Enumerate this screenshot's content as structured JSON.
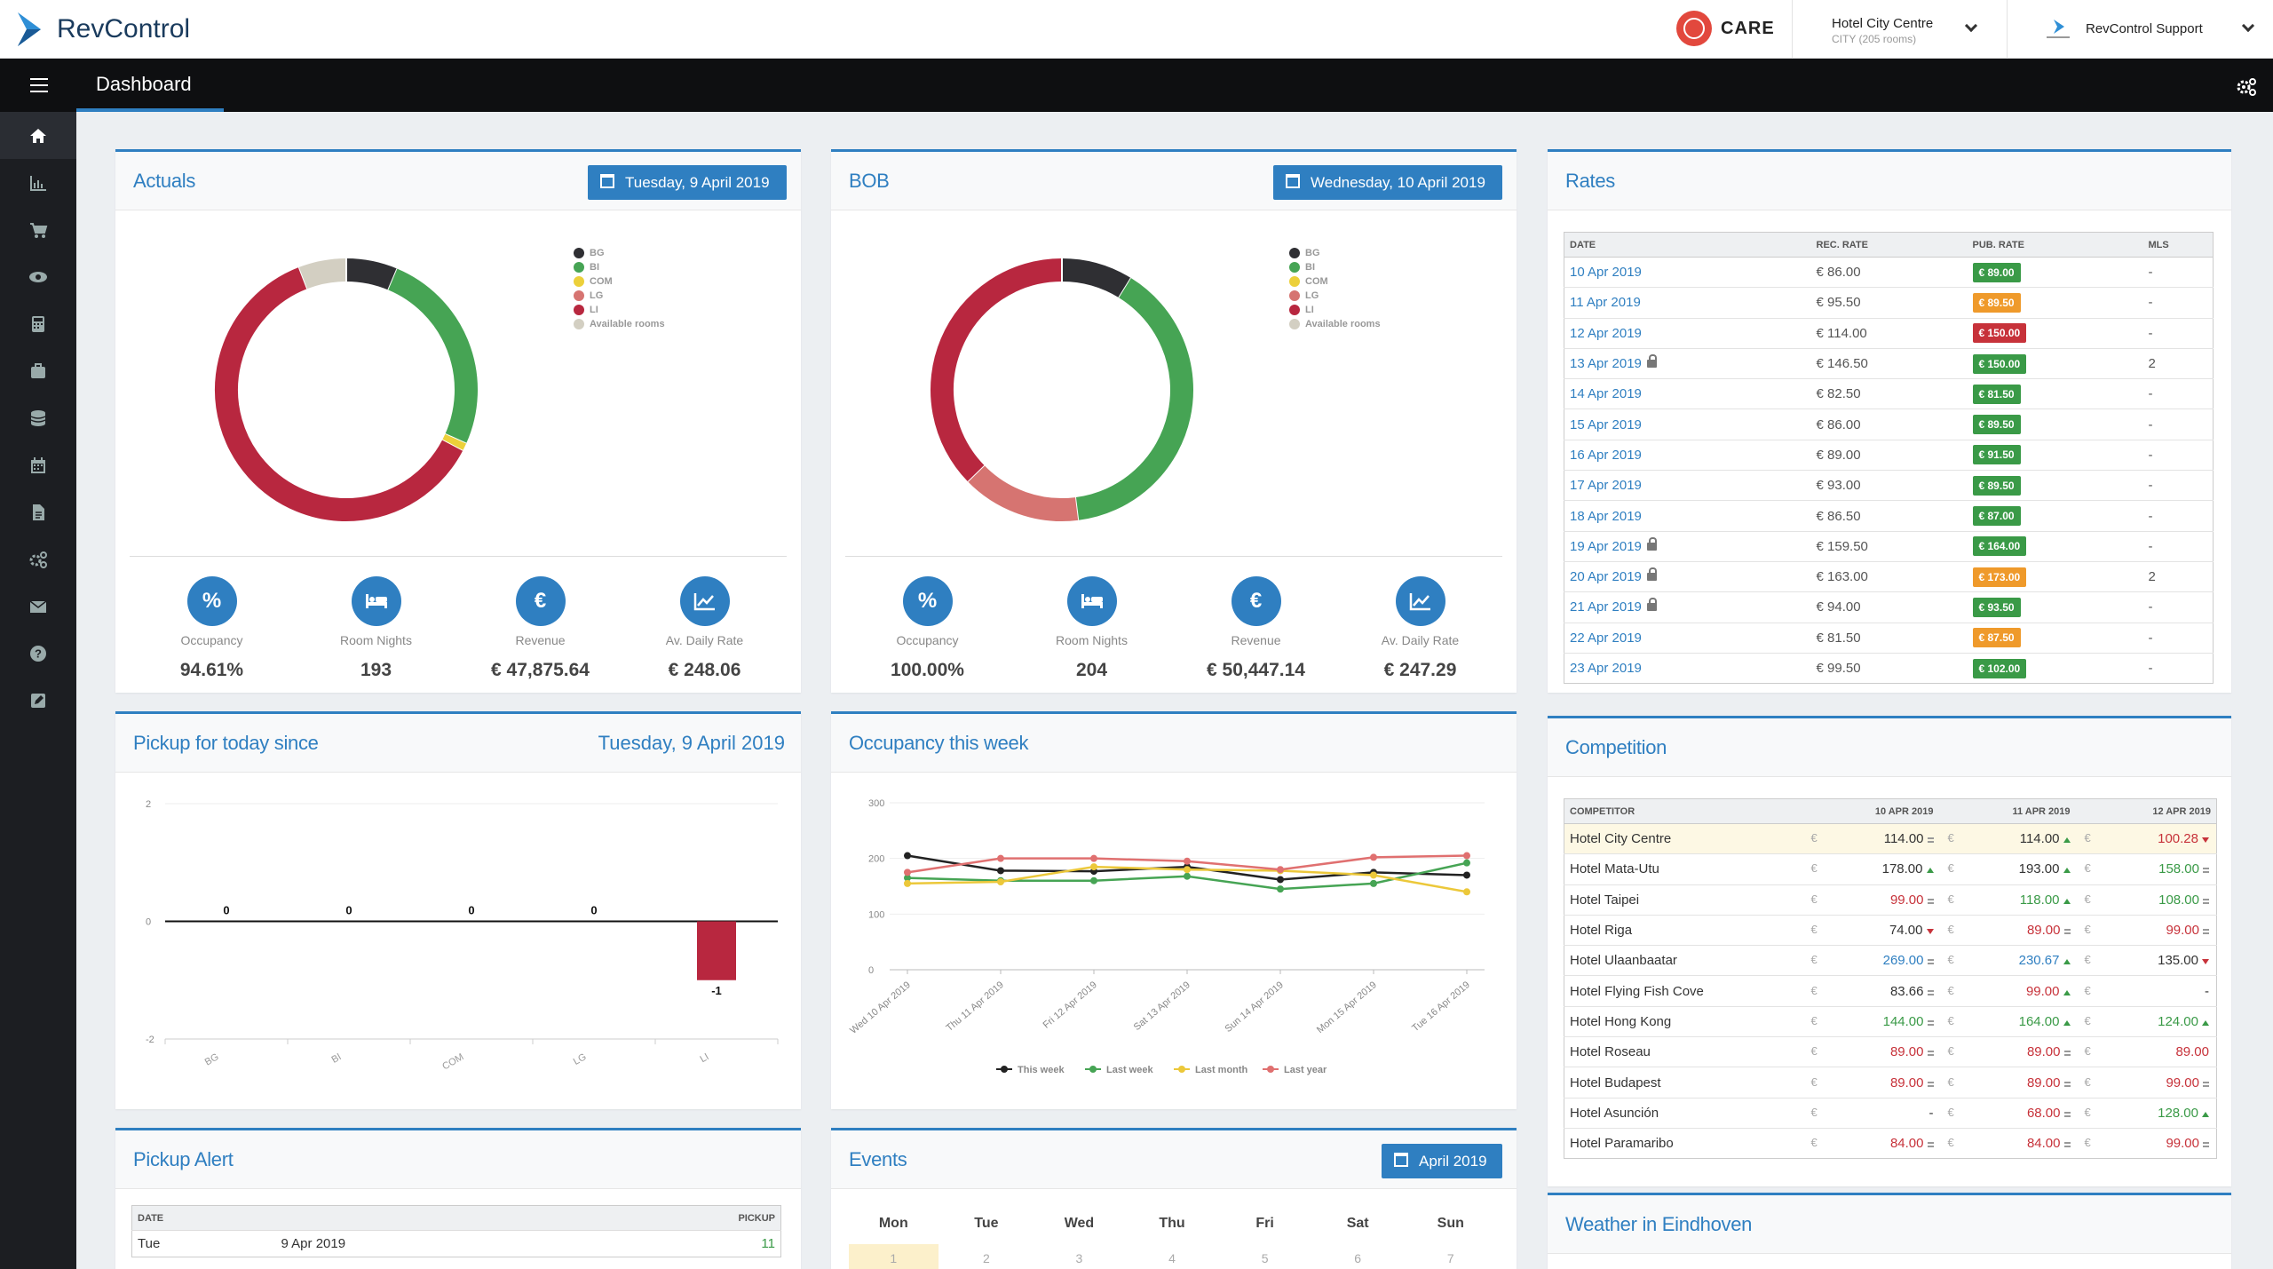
{
  "app": {
    "name": "RevControl",
    "care_label": "CARE"
  },
  "hotel_selector": {
    "name": "Hotel City Centre",
    "sub": "CITY (205 rooms)"
  },
  "user": {
    "name": "RevControl Support"
  },
  "nav": {
    "title": "Dashboard"
  },
  "sidebar": [
    "home-icon",
    "bar-chart-icon",
    "cart-icon",
    "eye-icon",
    "calculator-icon",
    "briefcase-icon",
    "database-icon",
    "calendar-icon",
    "document-icon",
    "cogs-icon",
    "envelope-icon",
    "question-icon",
    "edit-icon"
  ],
  "colors": {
    "BG": "#2f2f33",
    "BI": "#46a454",
    "COM": "#ecd03a",
    "LG": "#d67471",
    "LI": "#b8273f",
    "Available rooms": "#d3cfc2",
    "accent": "#2f7fc1"
  },
  "actuals": {
    "title": "Actuals",
    "date": "Tuesday, 9 April 2019",
    "legend": [
      "BG",
      "BI",
      "COM",
      "LG",
      "LI",
      "Available rooms"
    ],
    "donut": [
      {
        "segment": "BG",
        "value": 13
      },
      {
        "segment": "BI",
        "value": 52
      },
      {
        "segment": "COM",
        "value": 2
      },
      {
        "segment": "LG",
        "value": 0
      },
      {
        "segment": "LI",
        "value": 126
      },
      {
        "segment": "Available rooms",
        "value": 12
      }
    ],
    "kpis": [
      {
        "icon": "percent-icon",
        "symbol": "%",
        "label": "Occupancy",
        "value": "94.61%"
      },
      {
        "icon": "bed-icon",
        "symbol": "",
        "label": "Room Nights",
        "value": "193"
      },
      {
        "icon": "euro-icon",
        "symbol": "€",
        "label": "Revenue",
        "value": "€ 47,875.64"
      },
      {
        "icon": "trend-icon",
        "symbol": "",
        "label": "Av. Daily Rate",
        "value": "€ 248.06"
      }
    ]
  },
  "bob": {
    "title": "BOB",
    "date": "Wednesday, 10 April 2019",
    "legend": [
      "BG",
      "BI",
      "COM",
      "LG",
      "LI",
      "Available rooms"
    ],
    "donut": [
      {
        "segment": "BG",
        "value": 18
      },
      {
        "segment": "BI",
        "value": 80
      },
      {
        "segment": "COM",
        "value": 0
      },
      {
        "segment": "LG",
        "value": 30
      },
      {
        "segment": "LI",
        "value": 76
      },
      {
        "segment": "Available rooms",
        "value": 0
      }
    ],
    "kpis": [
      {
        "icon": "percent-icon",
        "symbol": "%",
        "label": "Occupancy",
        "value": "100.00%"
      },
      {
        "icon": "bed-icon",
        "symbol": "",
        "label": "Room Nights",
        "value": "204"
      },
      {
        "icon": "euro-icon",
        "symbol": "€",
        "label": "Revenue",
        "value": "€ 50,447.14"
      },
      {
        "icon": "trend-icon",
        "symbol": "",
        "label": "Av. Daily Rate",
        "value": "€ 247.29"
      }
    ]
  },
  "rates": {
    "title": "Rates",
    "headers": [
      "DATE",
      "REC. RATE",
      "PUB. RATE",
      "MLS"
    ],
    "rows": [
      {
        "date": "10 Apr 2019",
        "lock": false,
        "rec": "€ 86.00",
        "pub": "€ 89.00",
        "pub_color": "green",
        "mls": "-"
      },
      {
        "date": "11 Apr 2019",
        "lock": false,
        "rec": "€ 95.50",
        "pub": "€ 89.50",
        "pub_color": "orange",
        "mls": "-"
      },
      {
        "date": "12 Apr 2019",
        "lock": false,
        "rec": "€ 114.00",
        "pub": "€ 150.00",
        "pub_color": "red",
        "mls": "-"
      },
      {
        "date": "13 Apr 2019",
        "lock": true,
        "rec": "€ 146.50",
        "pub": "€ 150.00",
        "pub_color": "green",
        "mls": "2"
      },
      {
        "date": "14 Apr 2019",
        "lock": false,
        "rec": "€ 82.50",
        "pub": "€ 81.50",
        "pub_color": "green",
        "mls": "-"
      },
      {
        "date": "15 Apr 2019",
        "lock": false,
        "rec": "€ 86.00",
        "pub": "€ 89.50",
        "pub_color": "green",
        "mls": "-"
      },
      {
        "date": "16 Apr 2019",
        "lock": false,
        "rec": "€ 89.00",
        "pub": "€ 91.50",
        "pub_color": "green",
        "mls": "-"
      },
      {
        "date": "17 Apr 2019",
        "lock": false,
        "rec": "€ 93.00",
        "pub": "€ 89.50",
        "pub_color": "green",
        "mls": "-"
      },
      {
        "date": "18 Apr 2019",
        "lock": false,
        "rec": "€ 86.50",
        "pub": "€ 87.00",
        "pub_color": "green",
        "mls": "-"
      },
      {
        "date": "19 Apr 2019",
        "lock": true,
        "rec": "€ 159.50",
        "pub": "€ 164.00",
        "pub_color": "green",
        "mls": "-"
      },
      {
        "date": "20 Apr 2019",
        "lock": true,
        "rec": "€ 163.00",
        "pub": "€ 173.00",
        "pub_color": "orange",
        "mls": "2"
      },
      {
        "date": "21 Apr 2019",
        "lock": true,
        "rec": "€ 94.00",
        "pub": "€ 93.50",
        "pub_color": "green",
        "mls": "-"
      },
      {
        "date": "22 Apr 2019",
        "lock": false,
        "rec": "€ 81.50",
        "pub": "€ 87.50",
        "pub_color": "orange",
        "mls": "-"
      },
      {
        "date": "23 Apr 2019",
        "lock": false,
        "rec": "€ 99.50",
        "pub": "€ 102.00",
        "pub_color": "green",
        "mls": "-"
      }
    ]
  },
  "pickup": {
    "title": "Pickup for today since",
    "date": "Tuesday, 9 April 2019",
    "chart_data": {
      "type": "bar",
      "categories": [
        "BG",
        "BI",
        "COM",
        "LG",
        "LI"
      ],
      "values": [
        0,
        0,
        0,
        0,
        -1
      ],
      "data_labels": [
        "0",
        "0",
        "0",
        "0",
        "-1"
      ],
      "ylim": [
        -2,
        2
      ],
      "yticks": [
        "2",
        "0",
        "-2"
      ],
      "bar_color": "#b8273f"
    }
  },
  "occupancy_week": {
    "title": "Occupancy this week",
    "chart_data": {
      "type": "line",
      "categories": [
        "Wed 10 Apr 2019",
        "Thu 11 Apr 2019",
        "Fri 12 Apr 2019",
        "Sat 13 Apr 2019",
        "Sun 14 Apr 2019",
        "Mon 15 Apr 2019",
        "Tue 16 Apr 2019"
      ],
      "ylim": [
        0,
        300
      ],
      "yticks": [
        "300",
        "200",
        "100",
        "0"
      ],
      "series": [
        {
          "name": "This week",
          "color": "#222222",
          "values": [
            205,
            178,
            177,
            185,
            162,
            175,
            170
          ]
        },
        {
          "name": "Last week",
          "color": "#46a454",
          "values": [
            165,
            160,
            160,
            168,
            145,
            155,
            192
          ]
        },
        {
          "name": "Last month",
          "color": "#ecc83a",
          "values": [
            155,
            158,
            185,
            180,
            178,
            170,
            140
          ]
        },
        {
          "name": "Last year",
          "color": "#e07070",
          "values": [
            175,
            200,
            200,
            195,
            180,
            202,
            205
          ]
        }
      ]
    }
  },
  "competition": {
    "title": "Competition",
    "headers": [
      "COMPETITOR",
      "10 APR 2019",
      "11 APR 2019",
      "12 APR 2019"
    ],
    "rows": [
      {
        "name": "Hotel City Centre",
        "highlight": true,
        "cells": [
          {
            "v": "114.00",
            "c": "dark",
            "a": "eq"
          },
          {
            "v": "114.00",
            "c": "dark",
            "a": "up"
          },
          {
            "v": "100.28",
            "c": "red",
            "a": "dn"
          }
        ]
      },
      {
        "name": "Hotel Mata-Utu",
        "highlight": false,
        "cells": [
          {
            "v": "178.00",
            "c": "dark",
            "a": "up"
          },
          {
            "v": "193.00",
            "c": "dark",
            "a": "up"
          },
          {
            "v": "158.00",
            "c": "green",
            "a": "eq"
          }
        ]
      },
      {
        "name": "Hotel Taipei",
        "highlight": false,
        "cells": [
          {
            "v": "99.00",
            "c": "red",
            "a": "eq"
          },
          {
            "v": "118.00",
            "c": "green",
            "a": "up"
          },
          {
            "v": "108.00",
            "c": "green",
            "a": "eq"
          }
        ]
      },
      {
        "name": "Hotel Riga",
        "highlight": false,
        "cells": [
          {
            "v": "74.00",
            "c": "dark",
            "a": "dn"
          },
          {
            "v": "89.00",
            "c": "red",
            "a": "eq"
          },
          {
            "v": "99.00",
            "c": "red",
            "a": "eq"
          }
        ]
      },
      {
        "name": "Hotel Ulaanbaatar",
        "highlight": false,
        "cells": [
          {
            "v": "269.00",
            "c": "blue",
            "a": "eq"
          },
          {
            "v": "230.67",
            "c": "blue",
            "a": "up"
          },
          {
            "v": "135.00",
            "c": "dark",
            "a": "dn"
          }
        ]
      },
      {
        "name": "Hotel Flying Fish Cove",
        "highlight": false,
        "cells": [
          {
            "v": "83.66",
            "c": "dark",
            "a": "eq"
          },
          {
            "v": "99.00",
            "c": "red",
            "a": "up"
          },
          {
            "v": "-",
            "c": "dark",
            "a": ""
          }
        ]
      },
      {
        "name": "Hotel Hong Kong",
        "highlight": false,
        "cells": [
          {
            "v": "144.00",
            "c": "green",
            "a": "eq"
          },
          {
            "v": "164.00",
            "c": "green",
            "a": "up"
          },
          {
            "v": "124.00",
            "c": "green",
            "a": "up"
          }
        ]
      },
      {
        "name": "Hotel Roseau",
        "highlight": false,
        "cells": [
          {
            "v": "89.00",
            "c": "red",
            "a": "eq"
          },
          {
            "v": "89.00",
            "c": "red",
            "a": "eq"
          },
          {
            "v": "89.00",
            "c": "red",
            "a": ""
          }
        ]
      },
      {
        "name": "Hotel Budapest",
        "highlight": false,
        "cells": [
          {
            "v": "89.00",
            "c": "red",
            "a": "eq"
          },
          {
            "v": "89.00",
            "c": "red",
            "a": "eq"
          },
          {
            "v": "99.00",
            "c": "red",
            "a": "eq"
          }
        ]
      },
      {
        "name": "Hotel Asunción",
        "highlight": false,
        "cells": [
          {
            "v": "-",
            "c": "dark",
            "a": ""
          },
          {
            "v": "68.00",
            "c": "red",
            "a": "eq"
          },
          {
            "v": "128.00",
            "c": "green",
            "a": "up"
          }
        ]
      },
      {
        "name": "Hotel Paramaribo",
        "highlight": false,
        "cells": [
          {
            "v": "84.00",
            "c": "red",
            "a": "eq"
          },
          {
            "v": "84.00",
            "c": "red",
            "a": "eq"
          },
          {
            "v": "99.00",
            "c": "red",
            "a": "eq"
          }
        ]
      }
    ],
    "currency": "€"
  },
  "pickup_alert": {
    "title": "Pickup Alert",
    "headers": [
      "DATE",
      "PICKUP"
    ],
    "rows": [
      {
        "day": "Tue",
        "date": "9 Apr 2019",
        "pickup": "11"
      }
    ]
  },
  "events": {
    "title": "Events",
    "month": "April 2019",
    "days": [
      "Mon",
      "Tue",
      "Wed",
      "Thu",
      "Fri",
      "Sat",
      "Sun"
    ],
    "first_week": [
      "1",
      "2",
      "3",
      "4",
      "5",
      "6",
      "7"
    ]
  },
  "weather": {
    "title": "Weather in Eindhoven"
  }
}
